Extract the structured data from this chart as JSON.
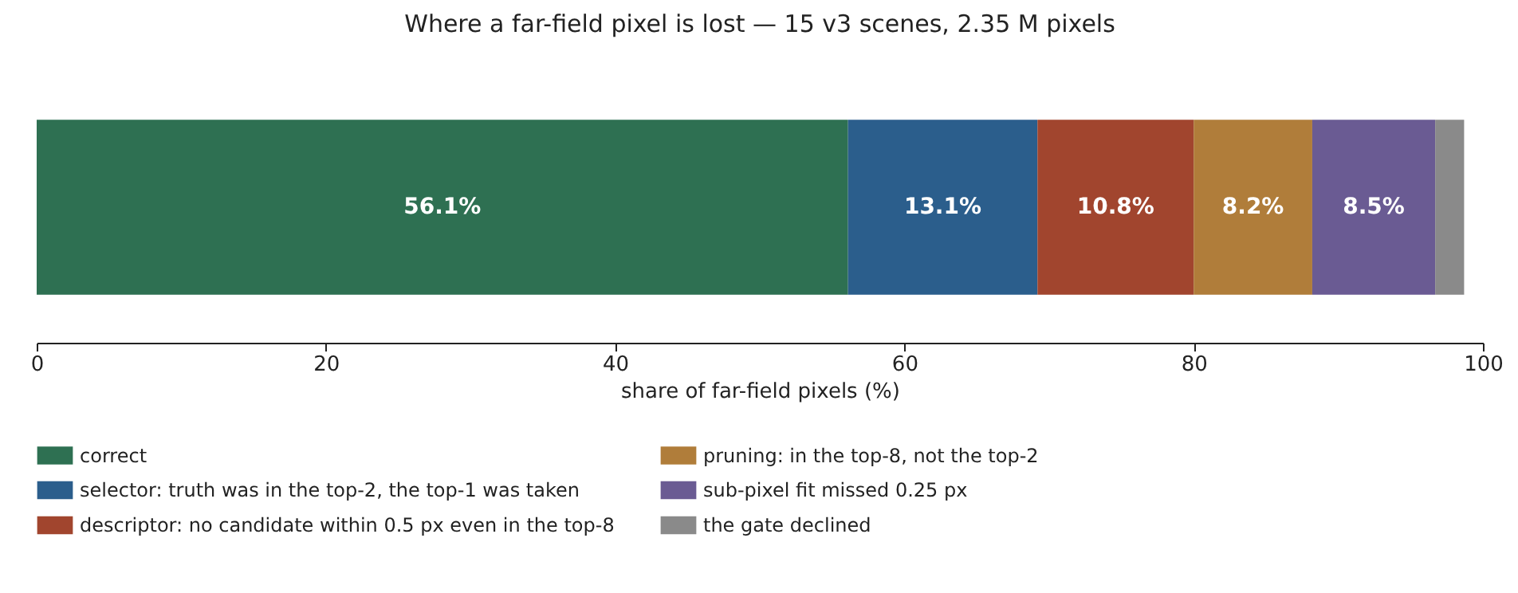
{
  "chart_data": {
    "type": "bar",
    "title": "Where a far-field pixel is lost — 15 v3 scenes, 2.35 M pixels",
    "xlabel": "share of far-field pixels (%)",
    "categories": [
      null
    ],
    "orientation": "horizontal",
    "stacked": true,
    "xlim": [
      0,
      100
    ],
    "xticks": [
      0,
      20,
      40,
      60,
      80,
      100
    ],
    "tick_labels": "x",
    "legend": "bottom",
    "series": [
      {
        "name": "correct",
        "color": "#2e7052",
        "values": [
          56.1
        ],
        "value_labels": [
          "56.1%"
        ]
      },
      {
        "name": "selector: truth was in the top-2, the top-1 was taken",
        "color": "#2b5e8c",
        "values": [
          13.1
        ],
        "value_labels": [
          "13.1%"
        ]
      },
      {
        "name": "descriptor: no candidate within 0.5 px even in the top-8",
        "color": "#a1452e",
        "values": [
          10.8
        ],
        "value_labels": [
          "10.8%"
        ]
      },
      {
        "name": "pruning: in the top-8, not the top-2",
        "color": "#b07d3a",
        "values": [
          8.2
        ],
        "value_labels": [
          "8.2%"
        ]
      },
      {
        "name": "sub-pixel fit missed 0.25 px",
        "color": "#6a5b93",
        "values": [
          8.5
        ],
        "value_labels": [
          "8.5%"
        ]
      },
      {
        "name": "the gate declined",
        "color": "#8a8a8a",
        "values": [
          2.0
        ],
        "value_labels": [
          null
        ]
      }
    ]
  }
}
